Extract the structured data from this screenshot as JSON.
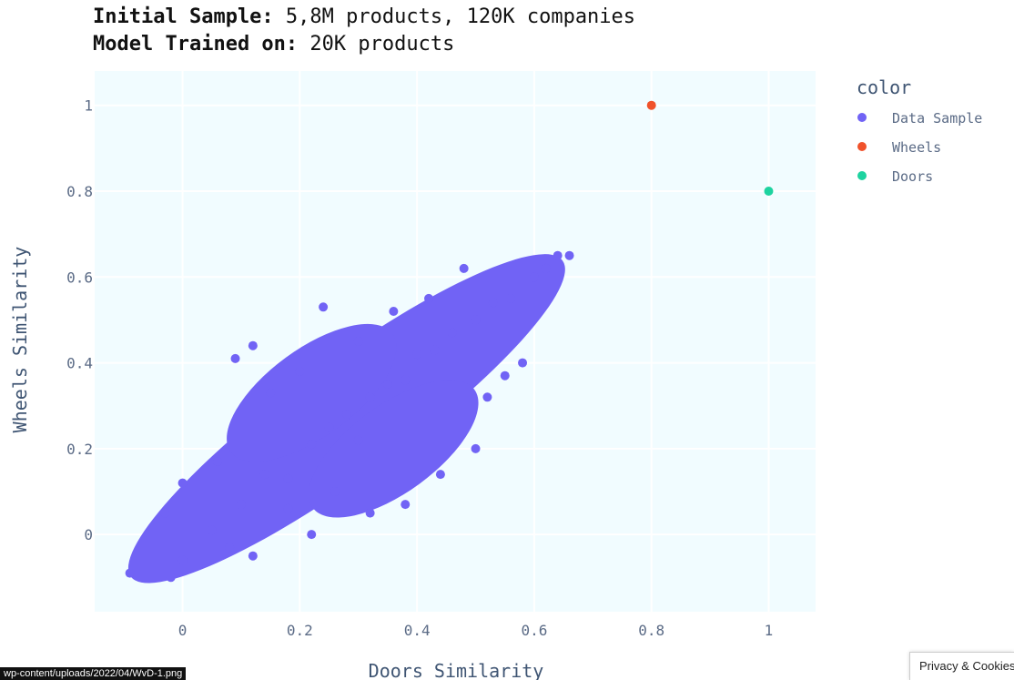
{
  "header": {
    "line1_bold": "Initial Sample:",
    "line1_rest": " 5,8M products, 120K companies",
    "line2_bold": "Model Trained on:",
    "line2_rest": " 20K products"
  },
  "colors": {
    "plot_bg": "#f1fcff",
    "data_sample": "#7163f5",
    "wheels": "#f0522b",
    "doors": "#1ed3a0",
    "grid": "#ffffff"
  },
  "chart_data": {
    "type": "scatter",
    "title": "Initial Sample: 5,8M products, 120K companies / Model Trained on: 20K products",
    "xlabel": "Doors Similarity",
    "ylabel": "Wheels Similarity",
    "xlim": [
      -0.15,
      1.08
    ],
    "ylim": [
      -0.18,
      1.08
    ],
    "x_ticks": [
      0,
      0.2,
      0.4,
      0.6,
      0.8,
      1
    ],
    "x_tick_labels": [
      "0",
      "0.2",
      "0.4",
      "0.6",
      "0.8",
      "1"
    ],
    "y_ticks": [
      0,
      0.2,
      0.4,
      0.6,
      0.8,
      1
    ],
    "y_tick_labels": [
      "0",
      "0.2",
      "0.4",
      "0.6",
      "0.8",
      "1"
    ],
    "grid": true,
    "legend_title": "color",
    "legend_position": "right",
    "series": [
      {
        "name": "Data Sample",
        "color": "#7163f5",
        "points": [
          [
            -0.09,
            -0.09
          ],
          [
            -0.02,
            -0.1
          ],
          [
            0.0,
            -0.06
          ],
          [
            0.05,
            0.01
          ],
          [
            0.1,
            0.07
          ],
          [
            0.14,
            0.14
          ],
          [
            0.18,
            0.13
          ],
          [
            0.22,
            0.21
          ],
          [
            0.25,
            0.25
          ],
          [
            0.28,
            0.28
          ],
          [
            0.3,
            0.22
          ],
          [
            0.32,
            0.32
          ],
          [
            0.35,
            0.35
          ],
          [
            0.38,
            0.36
          ],
          [
            0.4,
            0.42
          ],
          [
            0.43,
            0.43
          ],
          [
            0.46,
            0.47
          ],
          [
            0.5,
            0.5
          ],
          [
            0.53,
            0.54
          ],
          [
            0.56,
            0.55
          ],
          [
            0.6,
            0.6
          ],
          [
            0.62,
            0.62
          ],
          [
            0.64,
            0.65
          ],
          [
            0.66,
            0.65
          ],
          [
            0.48,
            0.62
          ],
          [
            0.24,
            0.53
          ],
          [
            0.09,
            0.41
          ],
          [
            0.12,
            0.44
          ],
          [
            0.52,
            0.32
          ],
          [
            0.55,
            0.37
          ],
          [
            0.58,
            0.4
          ],
          [
            0.5,
            0.2
          ],
          [
            0.44,
            0.14
          ],
          [
            0.38,
            0.07
          ],
          [
            0.32,
            0.05
          ],
          [
            0.22,
            0.0
          ],
          [
            0.15,
            0.33
          ],
          [
            0.2,
            0.38
          ],
          [
            0.3,
            0.45
          ],
          [
            0.36,
            0.52
          ],
          [
            0.42,
            0.55
          ],
          [
            0.0,
            0.12
          ],
          [
            -0.03,
            0.05
          ],
          [
            0.06,
            0.17
          ],
          [
            0.18,
            0.06
          ],
          [
            0.26,
            0.1
          ],
          [
            0.08,
            -0.03
          ],
          [
            0.12,
            -0.05
          ]
        ]
      },
      {
        "name": "Wheels",
        "color": "#f0522b",
        "points": [
          [
            0.8,
            1.0
          ]
        ]
      },
      {
        "name": "Doors",
        "color": "#1ed3a0",
        "points": [
          [
            1.0,
            0.8
          ]
        ]
      }
    ]
  },
  "overlays": {
    "status_url": "wp-content/uploads/2022/04/WvD-1.png",
    "privacy": "Privacy & Cookies Policy"
  }
}
